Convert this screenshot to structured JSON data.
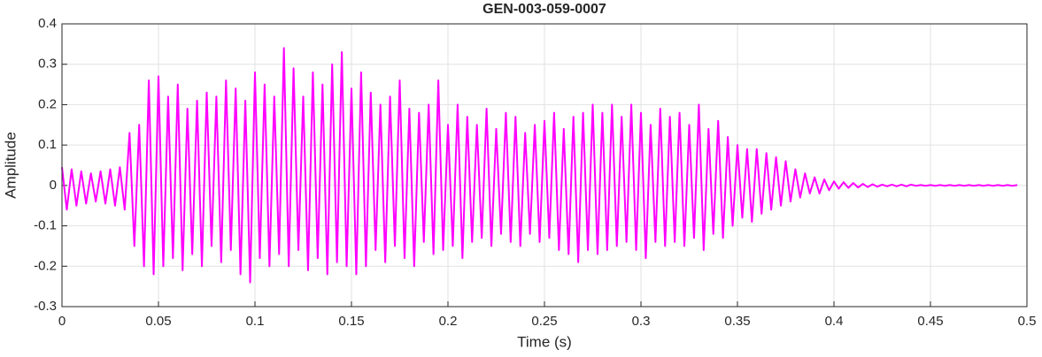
{
  "chart_data": {
    "type": "line",
    "title": "GEN-003-059-0007",
    "xlabel": "Time (s)",
    "ylabel": "Amplitude",
    "xlim": [
      0,
      0.5
    ],
    "ylim": [
      -0.3,
      0.4
    ],
    "xticks": [
      0,
      0.05,
      0.1,
      0.15,
      0.2,
      0.25,
      0.3,
      0.35,
      0.4,
      0.45,
      0.5
    ],
    "yticks": [
      -0.3,
      -0.2,
      -0.1,
      0,
      0.1,
      0.2,
      0.3,
      0.4
    ],
    "grid": true,
    "series": [
      {
        "color": "#ff00ff",
        "x": [
          0,
          0.0025,
          0.005,
          0.0075,
          0.01,
          0.0125,
          0.015,
          0.0175,
          0.02,
          0.0225,
          0.025,
          0.0275,
          0.03,
          0.0325,
          0.035,
          0.0375,
          0.04,
          0.0425,
          0.045,
          0.0475,
          0.05,
          0.0525,
          0.055,
          0.0575,
          0.06,
          0.0625,
          0.065,
          0.0675,
          0.07,
          0.0725,
          0.075,
          0.0775,
          0.08,
          0.0825,
          0.085,
          0.0875,
          0.09,
          0.0925,
          0.095,
          0.0975,
          0.1,
          0.1025,
          0.105,
          0.1075,
          0.11,
          0.1125,
          0.115,
          0.1175,
          0.12,
          0.1225,
          0.125,
          0.1275,
          0.13,
          0.1325,
          0.135,
          0.1375,
          0.14,
          0.1425,
          0.145,
          0.1475,
          0.15,
          0.1525,
          0.155,
          0.1575,
          0.16,
          0.1625,
          0.165,
          0.1675,
          0.17,
          0.1725,
          0.175,
          0.1775,
          0.18,
          0.1825,
          0.185,
          0.1875,
          0.19,
          0.1925,
          0.195,
          0.1975,
          0.2,
          0.2025,
          0.205,
          0.2075,
          0.21,
          0.2125,
          0.215,
          0.2175,
          0.22,
          0.2225,
          0.225,
          0.2275,
          0.23,
          0.2325,
          0.235,
          0.2375,
          0.24,
          0.2425,
          0.245,
          0.2475,
          0.25,
          0.2525,
          0.255,
          0.2575,
          0.26,
          0.2625,
          0.265,
          0.2675,
          0.27,
          0.2725,
          0.275,
          0.2775,
          0.28,
          0.2825,
          0.285,
          0.2875,
          0.29,
          0.2925,
          0.295,
          0.2975,
          0.3,
          0.3025,
          0.305,
          0.3075,
          0.31,
          0.3125,
          0.315,
          0.3175,
          0.32,
          0.3225,
          0.325,
          0.3275,
          0.33,
          0.3325,
          0.335,
          0.3375,
          0.34,
          0.3425,
          0.345,
          0.3475,
          0.35,
          0.3525,
          0.355,
          0.3575,
          0.36,
          0.3625,
          0.365,
          0.3675,
          0.37,
          0.3725,
          0.375,
          0.3775,
          0.38,
          0.3825,
          0.385,
          0.3875,
          0.39,
          0.3925,
          0.395,
          0.3975,
          0.4,
          0.4025,
          0.405,
          0.4075,
          0.41,
          0.4125,
          0.415,
          0.4175,
          0.42,
          0.4225,
          0.425,
          0.4275,
          0.43,
          0.4325,
          0.435,
          0.4375,
          0.44,
          0.4425,
          0.445,
          0.4475,
          0.45,
          0.4525,
          0.455,
          0.4575,
          0.46,
          0.4625,
          0.465,
          0.4675,
          0.47,
          0.4725,
          0.475,
          0.4775,
          0.48,
          0.4825,
          0.485,
          0.4875,
          0.49,
          0.4925,
          0.495
        ],
        "values": [
          0.045,
          -0.06,
          0.04,
          -0.05,
          0.035,
          -0.045,
          0.03,
          -0.04,
          0.035,
          -0.045,
          0.04,
          -0.05,
          0.045,
          -0.06,
          0.13,
          -0.15,
          0.15,
          -0.2,
          0.26,
          -0.22,
          0.27,
          -0.2,
          0.22,
          -0.18,
          0.25,
          -0.21,
          0.19,
          -0.17,
          0.21,
          -0.2,
          0.23,
          -0.15,
          0.22,
          -0.19,
          0.26,
          -0.16,
          0.24,
          -0.22,
          0.21,
          -0.24,
          0.28,
          -0.18,
          0.25,
          -0.2,
          0.22,
          -0.17,
          0.34,
          -0.2,
          0.29,
          -0.16,
          0.22,
          -0.21,
          0.28,
          -0.18,
          0.25,
          -0.22,
          0.3,
          -0.19,
          0.33,
          -0.2,
          0.24,
          -0.22,
          0.28,
          -0.2,
          0.23,
          -0.16,
          0.2,
          -0.19,
          0.22,
          -0.15,
          0.26,
          -0.18,
          0.19,
          -0.2,
          0.18,
          -0.14,
          0.2,
          -0.17,
          0.26,
          -0.16,
          0.15,
          -0.15,
          0.2,
          -0.18,
          0.17,
          -0.14,
          0.15,
          -0.13,
          0.19,
          -0.15,
          0.14,
          -0.12,
          0.18,
          -0.14,
          0.17,
          -0.15,
          0.13,
          -0.12,
          0.15,
          -0.14,
          0.16,
          -0.13,
          0.18,
          -0.16,
          0.14,
          -0.17,
          0.17,
          -0.19,
          0.18,
          -0.16,
          0.2,
          -0.17,
          0.18,
          -0.16,
          0.2,
          -0.15,
          0.17,
          -0.14,
          0.2,
          -0.16,
          0.18,
          -0.18,
          0.15,
          -0.14,
          0.19,
          -0.15,
          0.17,
          -0.14,
          0.18,
          -0.15,
          0.15,
          -0.13,
          0.2,
          -0.16,
          0.14,
          -0.12,
          0.16,
          -0.13,
          0.12,
          -0.1,
          0.1,
          -0.08,
          0.09,
          -0.09,
          0.09,
          -0.07,
          0.08,
          -0.06,
          0.07,
          -0.05,
          0.06,
          -0.04,
          0.04,
          -0.03,
          0.03,
          -0.02,
          0.02,
          -0.02,
          0.015,
          -0.012,
          0.01,
          -0.008,
          0.008,
          -0.006,
          0.006,
          -0.005,
          0.004,
          -0.004,
          0.003,
          -0.003,
          0.002,
          -0.002,
          0.002,
          -0.002,
          0.002,
          -0.002,
          0.002,
          -0.001,
          0.001,
          -0.001,
          0.001,
          -0.001,
          0.001,
          -0.001,
          0.001,
          -0.001,
          0.001,
          -0.001,
          0.001,
          -0.001,
          0.001,
          -0.001,
          0.001,
          -0.001,
          0.001,
          -0.001,
          0.001,
          -0.001,
          0.001
        ]
      }
    ]
  }
}
